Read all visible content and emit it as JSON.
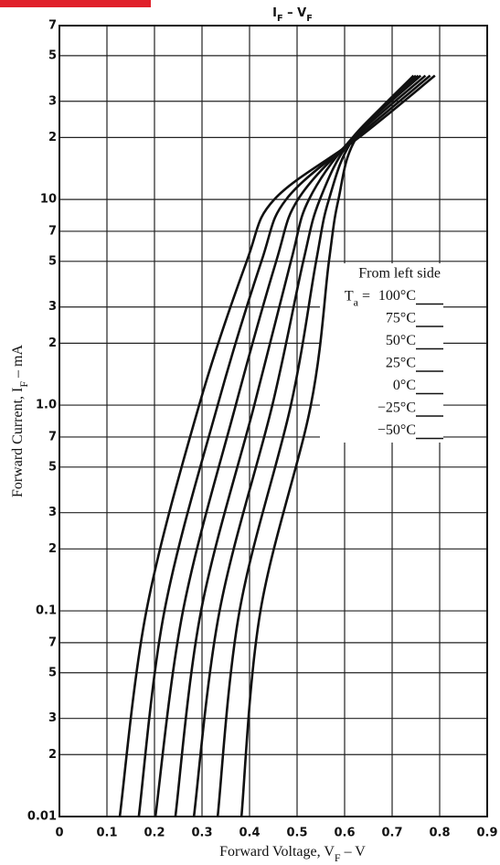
{
  "chart_data": {
    "type": "line",
    "title_parts": [
      {
        "text": "I"
      },
      {
        "text": "F",
        "sub": true
      },
      {
        "text": " – "
      },
      {
        "text": "V"
      },
      {
        "text": "F",
        "sub": true
      }
    ],
    "xlabel_parts": [
      {
        "text": "Forward Voltage, V"
      },
      {
        "text": "F",
        "sub": true
      },
      {
        "text": " – V"
      }
    ],
    "ylabel_parts": [
      {
        "text": "Forward Current, I"
      },
      {
        "text": "F",
        "sub": true
      },
      {
        "text": " – mA"
      }
    ],
    "legend_title": "From left side",
    "legend_prefix_parts": [
      {
        "text": "T"
      },
      {
        "text": "a",
        "sub": true
      },
      {
        "text": " = "
      }
    ],
    "xlim": [
      0,
      0.9
    ],
    "xticks": [
      0,
      0.1,
      0.2,
      0.3,
      0.4,
      0.5,
      0.6,
      0.7,
      0.8,
      0.9
    ],
    "ylim": [
      0.01,
      70
    ],
    "ylog": true,
    "yticks": [
      {
        "value": 70,
        "label": "7"
      },
      {
        "value": 50,
        "label": "5"
      },
      {
        "value": 30,
        "label": "3"
      },
      {
        "value": 20,
        "label": "2"
      },
      10,
      7,
      5,
      3,
      2,
      {
        "value": 1,
        "label": "1.0"
      },
      {
        "value": 0.7,
        "label": "7"
      },
      {
        "value": 0.5,
        "label": "5"
      },
      {
        "value": 0.3,
        "label": "3"
      },
      {
        "value": 0.2,
        "label": "2"
      },
      0.1,
      {
        "value": 0.07,
        "label": "7"
      },
      {
        "value": 0.05,
        "label": "5"
      },
      {
        "value": 0.03,
        "label": "3"
      },
      {
        "value": 0.02,
        "label": "2"
      },
      0.01
    ],
    "grid": true,
    "series": [
      {
        "name": "100°C",
        "color": "#111",
        "x": [
          0.127,
          0.183,
          0.294,
          0.394,
          0.452,
          0.63,
          0.79
        ],
        "y": [
          0.01,
          0.1,
          1,
          5,
          10,
          20,
          40
        ]
      },
      {
        "name": "75°C",
        "color": "#111",
        "x": [
          0.167,
          0.221,
          0.333,
          0.425,
          0.477,
          0.625,
          0.78
        ],
        "y": [
          0.01,
          0.1,
          1,
          5,
          10,
          20,
          40
        ]
      },
      {
        "name": "50°C",
        "color": "#111",
        "x": [
          0.202,
          0.26,
          0.371,
          0.456,
          0.502,
          0.62,
          0.77
        ],
        "y": [
          0.01,
          0.1,
          1,
          5,
          10,
          20,
          40
        ]
      },
      {
        "name": "25°C",
        "color": "#111",
        "x": [
          0.244,
          0.298,
          0.41,
          0.487,
          0.525,
          0.617,
          0.76
        ],
        "y": [
          0.01,
          0.1,
          1,
          5,
          10,
          20,
          40
        ]
      },
      {
        "name": "0°C",
        "color": "#111",
        "x": [
          0.283,
          0.337,
          0.448,
          0.513,
          0.548,
          0.617,
          0.755
        ],
        "y": [
          0.01,
          0.1,
          1,
          5,
          10,
          20,
          40
        ]
      },
      {
        "name": "−25°C",
        "color": "#111",
        "x": [
          0.333,
          0.379,
          0.487,
          0.54,
          0.567,
          0.62,
          0.75
        ],
        "y": [
          0.01,
          0.1,
          1,
          5,
          10,
          20,
          40
        ]
      },
      {
        "name": "−50°C",
        "color": "#111",
        "x": [
          0.383,
          0.423,
          0.529,
          0.567,
          0.587,
          0.625,
          0.745
        ],
        "y": [
          0.01,
          0.1,
          1,
          5,
          10,
          20,
          40
        ]
      }
    ]
  }
}
